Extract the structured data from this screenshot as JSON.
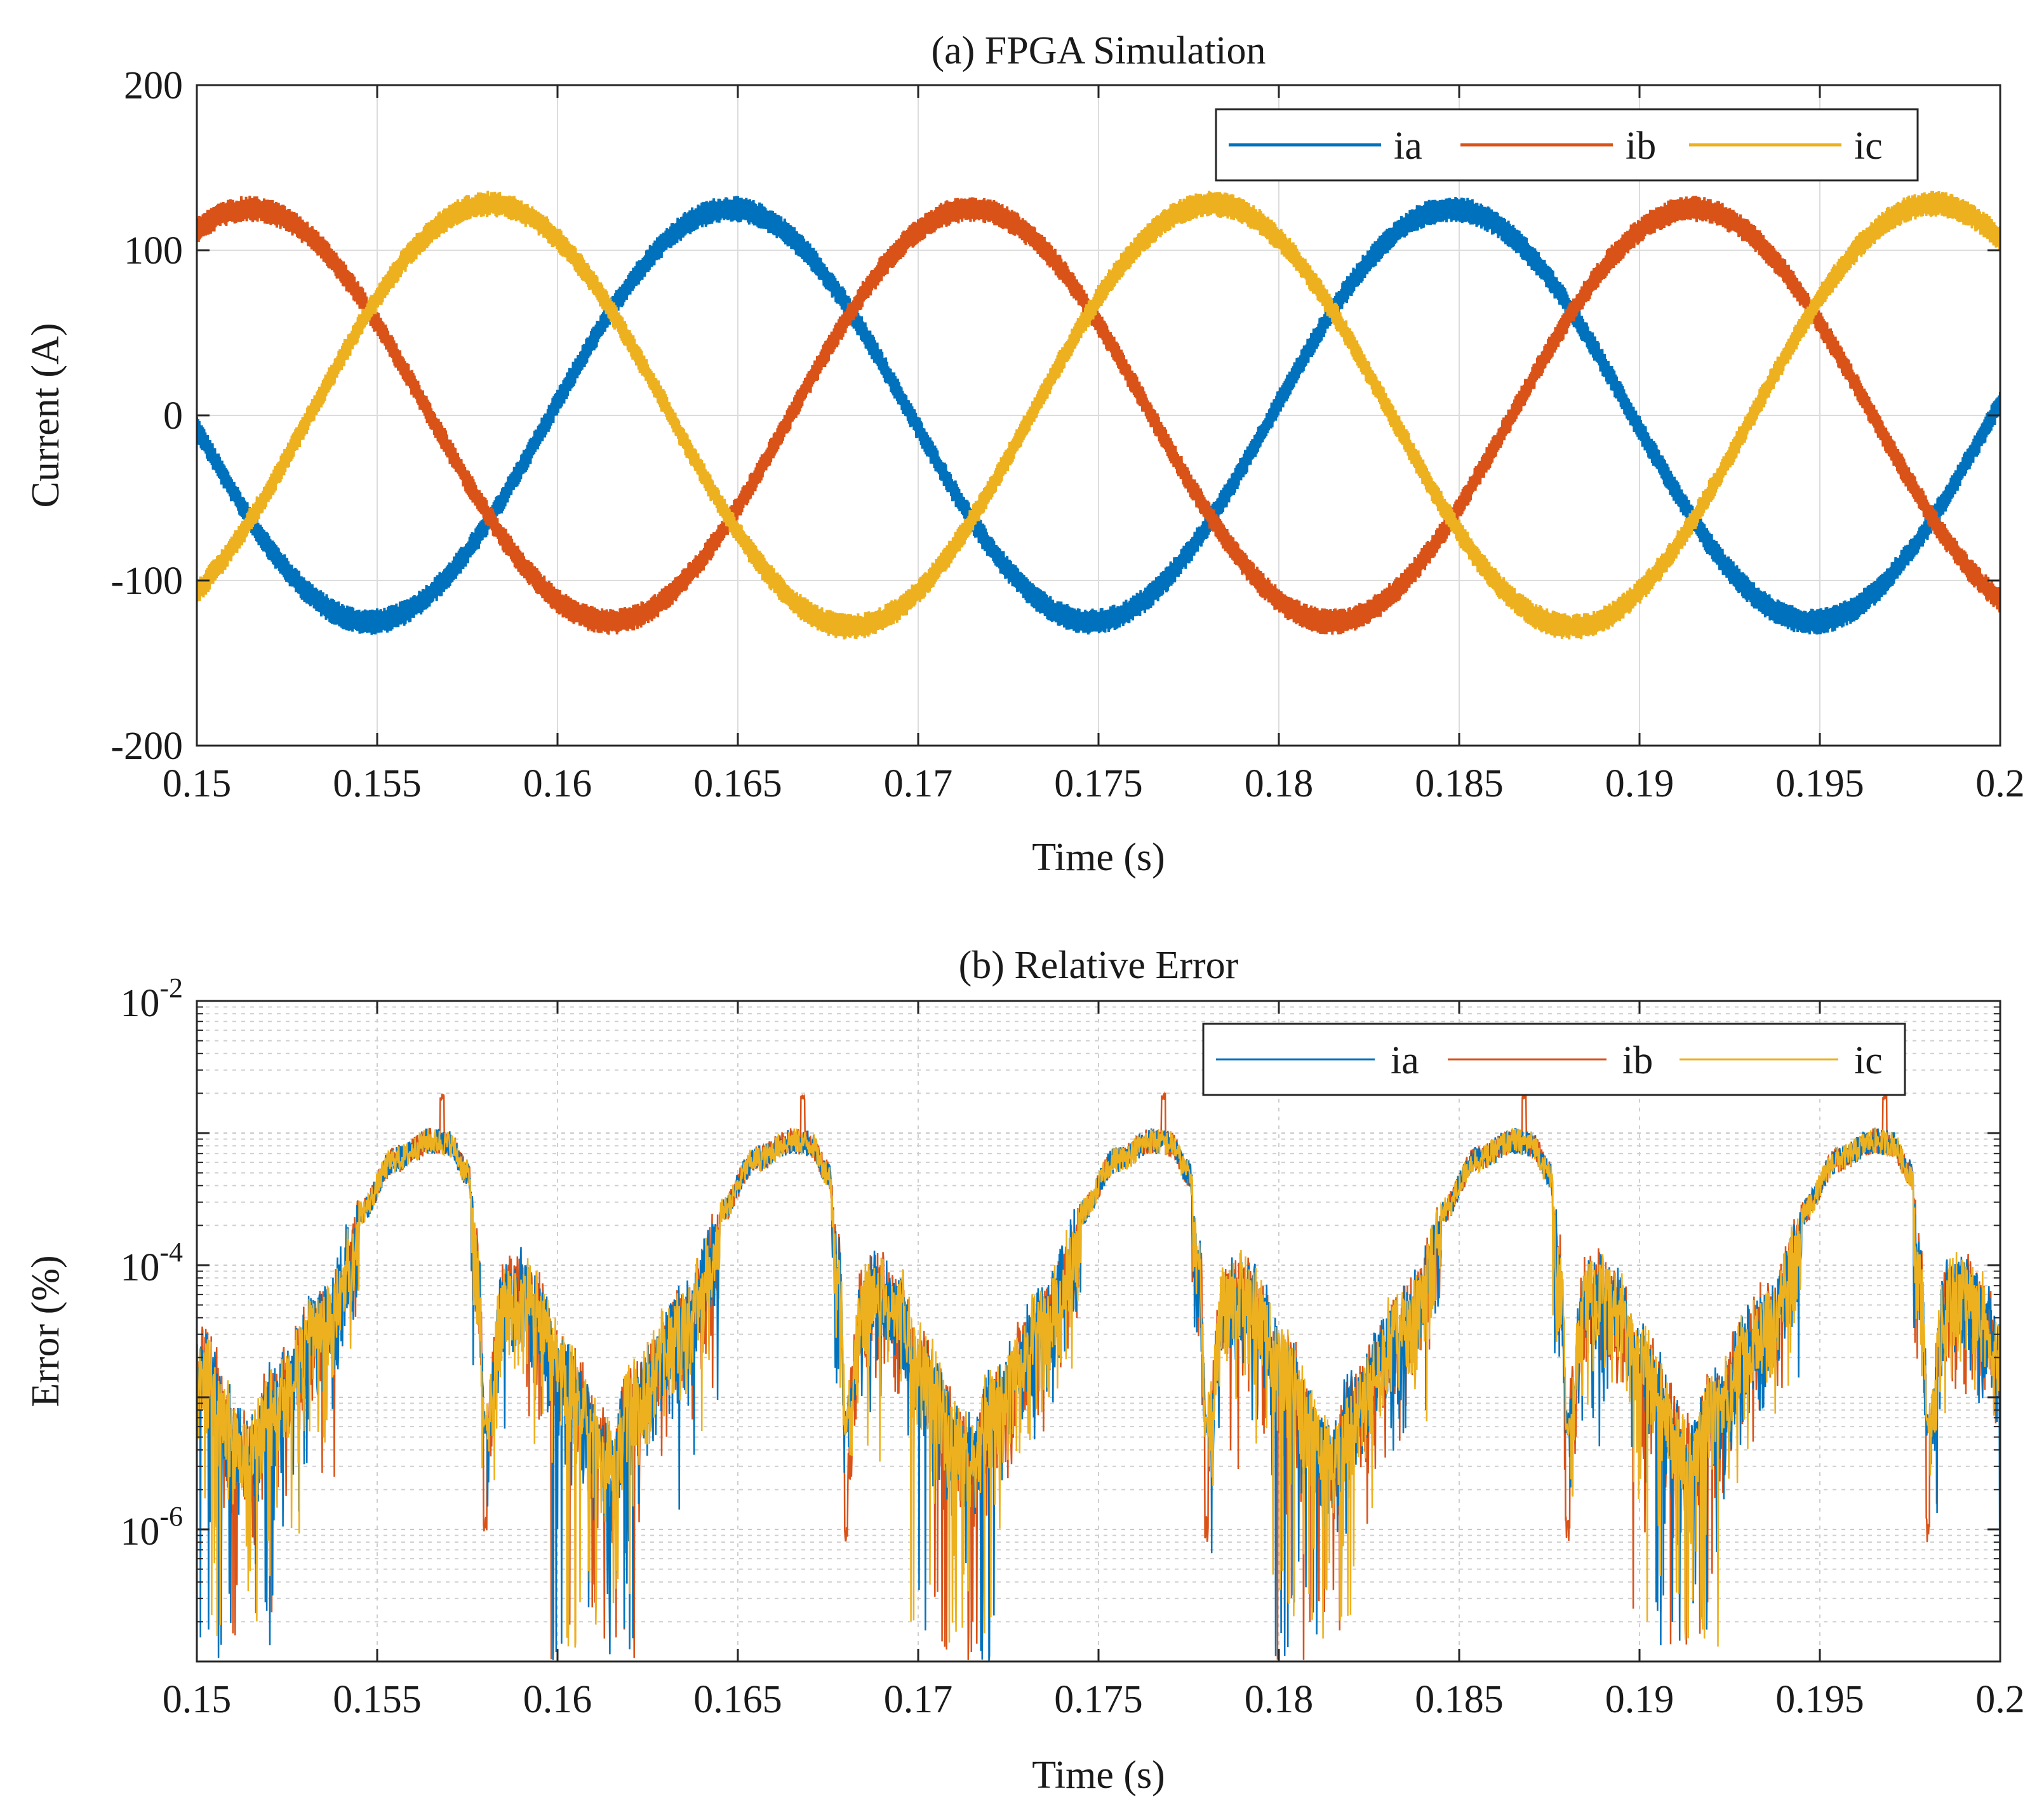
{
  "chart_data": [
    {
      "type": "line",
      "title": "(a) FPGA Simulation",
      "xlabel": "Time (s)",
      "ylabel": "Current (A)",
      "xlim": [
        0.15,
        0.2
      ],
      "ylim": [
        -200,
        200
      ],
      "yscale": "linear",
      "grid": true,
      "legend": {
        "placement": "top-right",
        "orientation": "horizontal",
        "entries": [
          "ia",
          "ib",
          "ic"
        ]
      },
      "xticks": [
        "0.15",
        "0.155",
        "0.16",
        "0.165",
        "0.17",
        "0.175",
        "0.18",
        "0.185",
        "0.19",
        "0.195",
        "0.2"
      ],
      "yticks": [
        "-200",
        "-100",
        "0",
        "100",
        "200"
      ],
      "series": [
        {
          "name": "ia",
          "color": "#0072BD",
          "amplitude": 125,
          "frequency_hz": 50,
          "phase_deg": 0,
          "ripple_amplitude": 8,
          "points": [
            [
              0.15,
              8
            ],
            [
              0.1552,
              -125
            ],
            [
              0.1602,
              0
            ],
            [
              0.1652,
              125
            ],
            [
              0.1702,
              0
            ],
            [
              0.1752,
              -125
            ],
            [
              0.1802,
              0
            ],
            [
              0.1852,
              125
            ],
            [
              0.1902,
              0
            ],
            [
              0.1952,
              -125
            ],
            [
              0.2,
              0
            ]
          ]
        },
        {
          "name": "ib",
          "color": "#D95319",
          "amplitude": 125,
          "frequency_hz": 50,
          "phase_deg": -120,
          "ripple_amplitude": 8,
          "points": [
            [
              0.15,
              108
            ],
            [
              0.1518,
              125
            ],
            [
              0.1568,
              0
            ],
            [
              0.1618,
              -125
            ],
            [
              0.1668,
              0
            ],
            [
              0.1718,
              125
            ],
            [
              0.1768,
              0
            ],
            [
              0.1818,
              -125
            ],
            [
              0.1868,
              0
            ],
            [
              0.1918,
              125
            ],
            [
              0.2,
              -108
            ]
          ]
        },
        {
          "name": "ic",
          "color": "#EDB120",
          "amplitude": 128,
          "frequency_hz": 50,
          "phase_deg": 120,
          "ripple_amplitude": 8,
          "points": [
            [
              0.15,
              -115
            ],
            [
              0.1535,
              0
            ],
            [
              0.1585,
              128
            ],
            [
              0.1635,
              0
            ],
            [
              0.1685,
              -128
            ],
            [
              0.1735,
              0
            ],
            [
              0.1785,
              128
            ],
            [
              0.1835,
              0
            ],
            [
              0.1885,
              -128
            ],
            [
              0.1935,
              0
            ],
            [
              0.1985,
              128
            ],
            [
              0.2,
              115
            ]
          ]
        }
      ]
    },
    {
      "type": "line",
      "title": "(b) Relative Error",
      "xlabel": "Time (s)",
      "ylabel": "Error (%)",
      "xlim": [
        0.15,
        0.2
      ],
      "ylim_log10": [
        -7,
        -2
      ],
      "yscale": "log",
      "grid": true,
      "minor_grid": true,
      "legend": {
        "placement": "top-right",
        "orientation": "horizontal",
        "entries": [
          "ia",
          "ib",
          "ic"
        ]
      },
      "xticks": [
        "0.15",
        "0.155",
        "0.16",
        "0.165",
        "0.17",
        "0.175",
        "0.18",
        "0.185",
        "0.19",
        "0.195",
        "0.2"
      ],
      "yticks": [
        {
          "base": "10",
          "exp": "-2",
          "log10": -2
        },
        {
          "base": "10",
          "exp": "-4",
          "log10": -4
        },
        {
          "base": "10",
          "exp": "-6",
          "log10": -6
        }
      ],
      "envelope_log10": {
        "period_s": 0.01,
        "description": "periodic relative-error envelope (log10 of %) shared by all three phases",
        "points": [
          [
            0.0,
            -4.5
          ],
          [
            0.0015,
            -5.2
          ],
          [
            0.002,
            -4.8
          ],
          [
            0.0035,
            -4.2
          ],
          [
            0.0045,
            -3.6
          ],
          [
            0.0055,
            -3.2
          ],
          [
            0.0065,
            -3.06
          ],
          [
            0.007,
            -3.08
          ],
          [
            0.0075,
            -3.3
          ],
          [
            0.0078,
            -3.8
          ],
          [
            0.008,
            -5.0
          ],
          [
            0.0085,
            -4.0
          ],
          [
            0.009,
            -3.95
          ],
          [
            0.0095,
            -4.1
          ],
          [
            0.01,
            -4.5
          ]
        ]
      },
      "series": [
        {
          "name": "ia",
          "color": "#0072BD",
          "dip_min_log10": -7.0,
          "peak_log10": -3.06
        },
        {
          "name": "ib",
          "color": "#D95319",
          "dip_min_log10": -7.0,
          "peak_log10": -2.75
        },
        {
          "name": "ic",
          "color": "#EDB120",
          "dip_min_log10": -6.9,
          "peak_log10": -3.06
        }
      ]
    }
  ]
}
